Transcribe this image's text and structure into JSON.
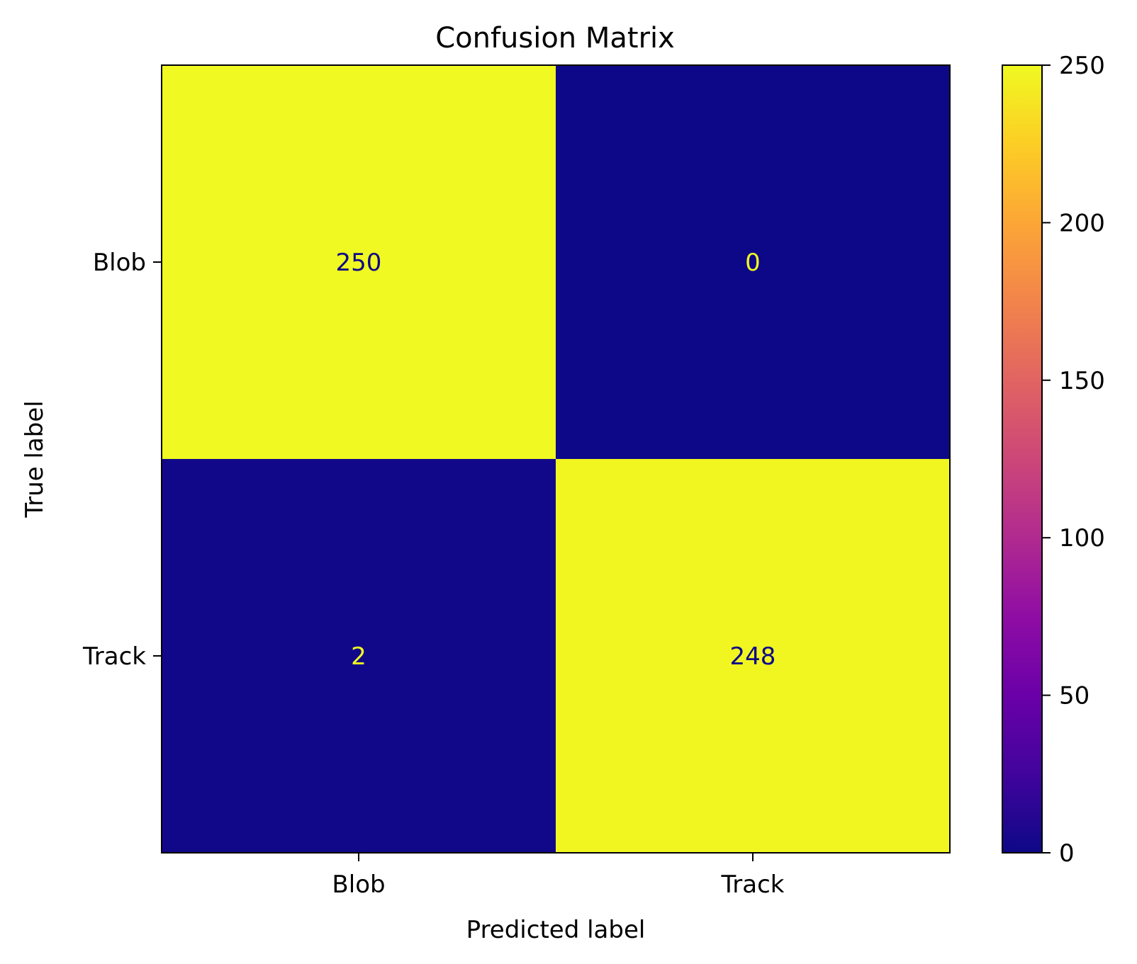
{
  "chart_data": {
    "type": "heatmap",
    "title": "Confusion Matrix",
    "xlabel": "Predicted label",
    "ylabel": "True label",
    "x_categories": [
      "Blob",
      "Track"
    ],
    "y_categories": [
      "Blob",
      "Track"
    ],
    "values": [
      [
        250,
        0
      ],
      [
        2,
        248
      ]
    ],
    "value_labels": [
      [
        "250",
        "0"
      ],
      [
        "2",
        "248"
      ]
    ],
    "colormap": "plasma",
    "colorbar": {
      "range": [
        0,
        250
      ],
      "ticks": [
        0,
        50,
        100,
        150,
        200,
        250
      ],
      "tick_labels": [
        "0",
        "50",
        "100",
        "150",
        "200",
        "250"
      ]
    },
    "colors": {
      "low": "#0d0887",
      "high": "#f0f921",
      "text_on_low": "#f0f921",
      "text_on_high": "#0d0887"
    }
  }
}
